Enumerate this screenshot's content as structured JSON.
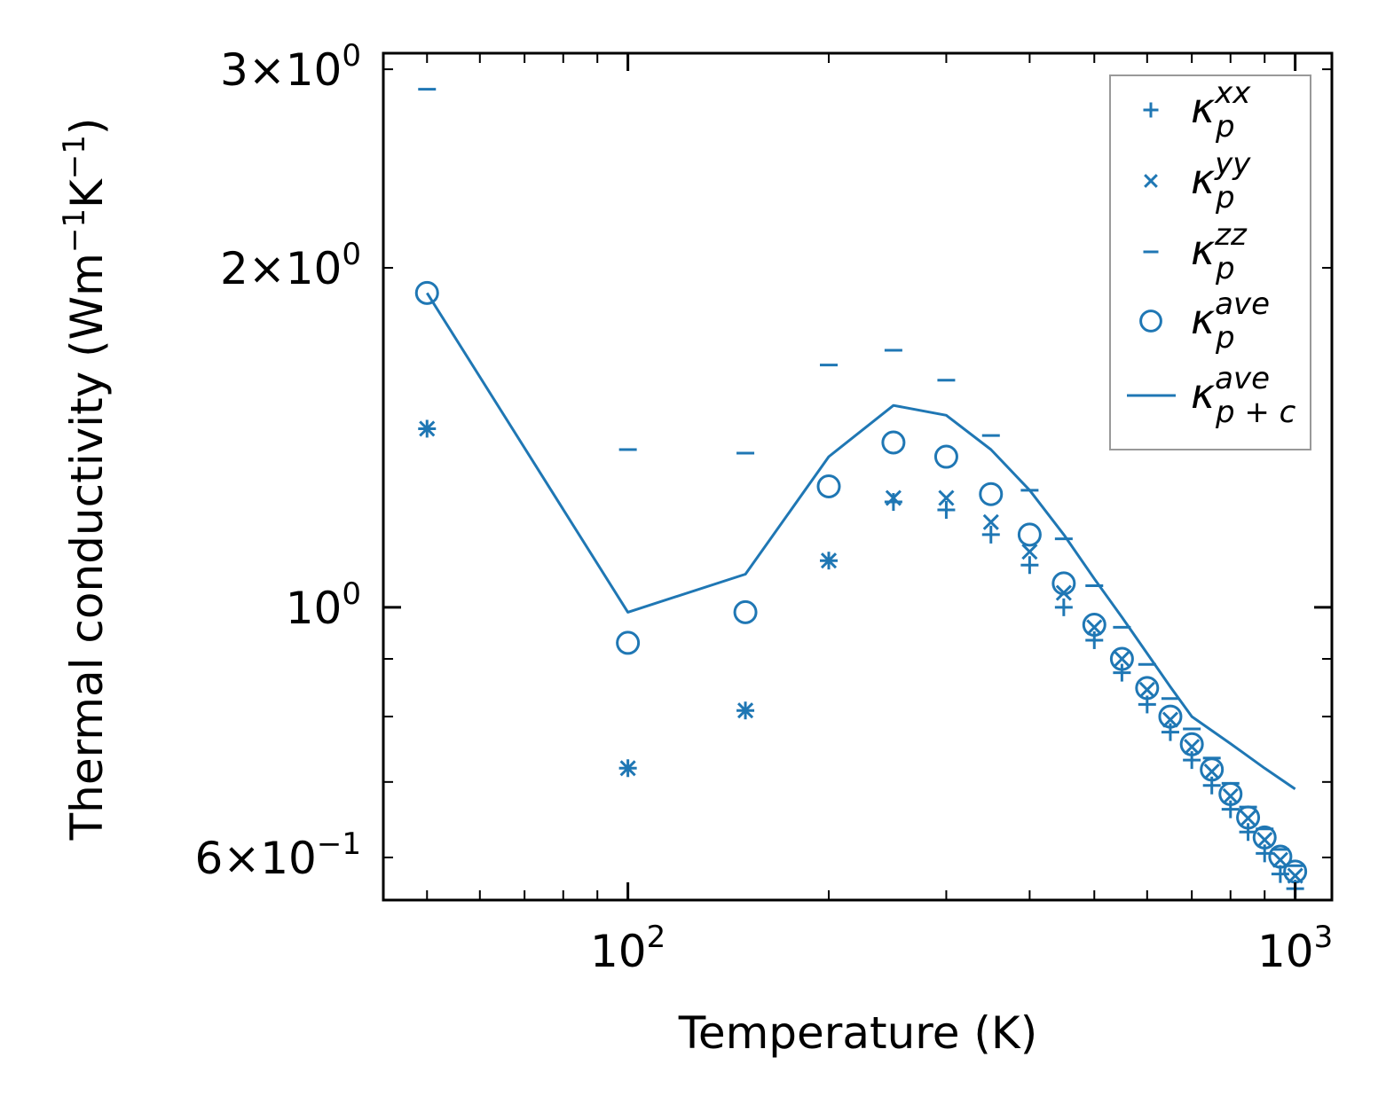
{
  "colors": {
    "series": "#1f77b4",
    "axis": "#000000",
    "legend_border": "#999999"
  },
  "chart_data": {
    "type": "scatter",
    "title": "",
    "xlabel": "Temperature (K)",
    "ylabel_text": "Thermal conductivity (Wm",
    "ylabel_sup1": "−1",
    "ylabel_mid": "K",
    "ylabel_sup2": "−1",
    "ylabel_close": ")",
    "xscale": "log",
    "yscale": "log",
    "xlim": [
      43,
      1135
    ],
    "ylim": [
      0.55,
      3.1
    ],
    "grid": false,
    "legend_position": "top-right",
    "x_ticks": [
      {
        "value": 100,
        "base": "10",
        "exp": "2"
      },
      {
        "value": 1000,
        "base": "10",
        "exp": "3"
      }
    ],
    "y_ticks": [
      {
        "value": 3,
        "mant": "3",
        "times": "×",
        "base": "10",
        "exp": "0"
      },
      {
        "value": 2,
        "mant": "2",
        "times": "×",
        "base": "10",
        "exp": "0"
      },
      {
        "value": 1,
        "mant": "",
        "times": "",
        "base": "10",
        "exp": "0"
      },
      {
        "value": 0.6,
        "mant": "6",
        "times": "×",
        "base": "10",
        "exp": "−1"
      }
    ],
    "x": [
      50,
      100,
      150,
      200,
      250,
      300,
      350,
      400,
      450,
      500,
      550,
      600,
      650,
      700,
      750,
      800,
      850,
      900,
      950,
      1000
    ],
    "series": [
      {
        "key": "xx",
        "marker": "plus",
        "label_base": "κ",
        "label_sup": "xx",
        "label_sub": "p",
        "values": [
          1.44,
          0.72,
          0.81,
          1.1,
          1.24,
          1.22,
          1.16,
          1.09,
          1.0,
          0.935,
          0.875,
          0.82,
          0.775,
          0.732,
          0.695,
          0.662,
          0.632,
          0.605,
          0.58,
          0.563
        ]
      },
      {
        "key": "yy",
        "marker": "x",
        "label_base": "κ",
        "label_sup": "yy",
        "label_sub": "p",
        "values": [
          1.44,
          0.72,
          0.81,
          1.1,
          1.25,
          1.25,
          1.19,
          1.12,
          1.03,
          0.96,
          0.9,
          0.845,
          0.795,
          0.752,
          0.715,
          0.68,
          0.65,
          0.622,
          0.597,
          0.578
        ]
      },
      {
        "key": "zz",
        "marker": "minus",
        "label_base": "κ",
        "label_sup": "zz",
        "label_sub": "p",
        "values": [
          2.88,
          1.38,
          1.37,
          1.64,
          1.69,
          1.59,
          1.42,
          1.27,
          1.15,
          1.045,
          0.96,
          0.89,
          0.83,
          0.78,
          0.735,
          0.698,
          0.665,
          0.636,
          0.61,
          0.59
        ]
      },
      {
        "key": "ave",
        "marker": "circle",
        "label_base": "κ",
        "label_sup": "ave",
        "label_sub": "p",
        "values": [
          1.9,
          0.93,
          0.99,
          1.28,
          1.4,
          1.36,
          1.26,
          1.16,
          1.05,
          0.965,
          0.9,
          0.848,
          0.8,
          0.756,
          0.718,
          0.683,
          0.651,
          0.625,
          0.601,
          0.583
        ]
      },
      {
        "key": "ave_pc",
        "marker": "line",
        "label_base": "κ",
        "label_sup": "ave",
        "label_sub": "p + c",
        "values": [
          1.9,
          0.99,
          1.07,
          1.36,
          1.51,
          1.48,
          1.38,
          1.27,
          1.16,
          1.06,
          0.98,
          0.91,
          0.85,
          0.8,
          0.757,
          0.72,
          0.69
        ]
      }
    ],
    "line_x": [
      50,
      100,
      150,
      200,
      250,
      300,
      350,
      400,
      450,
      500,
      550,
      600,
      650,
      700,
      800,
      900,
      1000
    ]
  }
}
